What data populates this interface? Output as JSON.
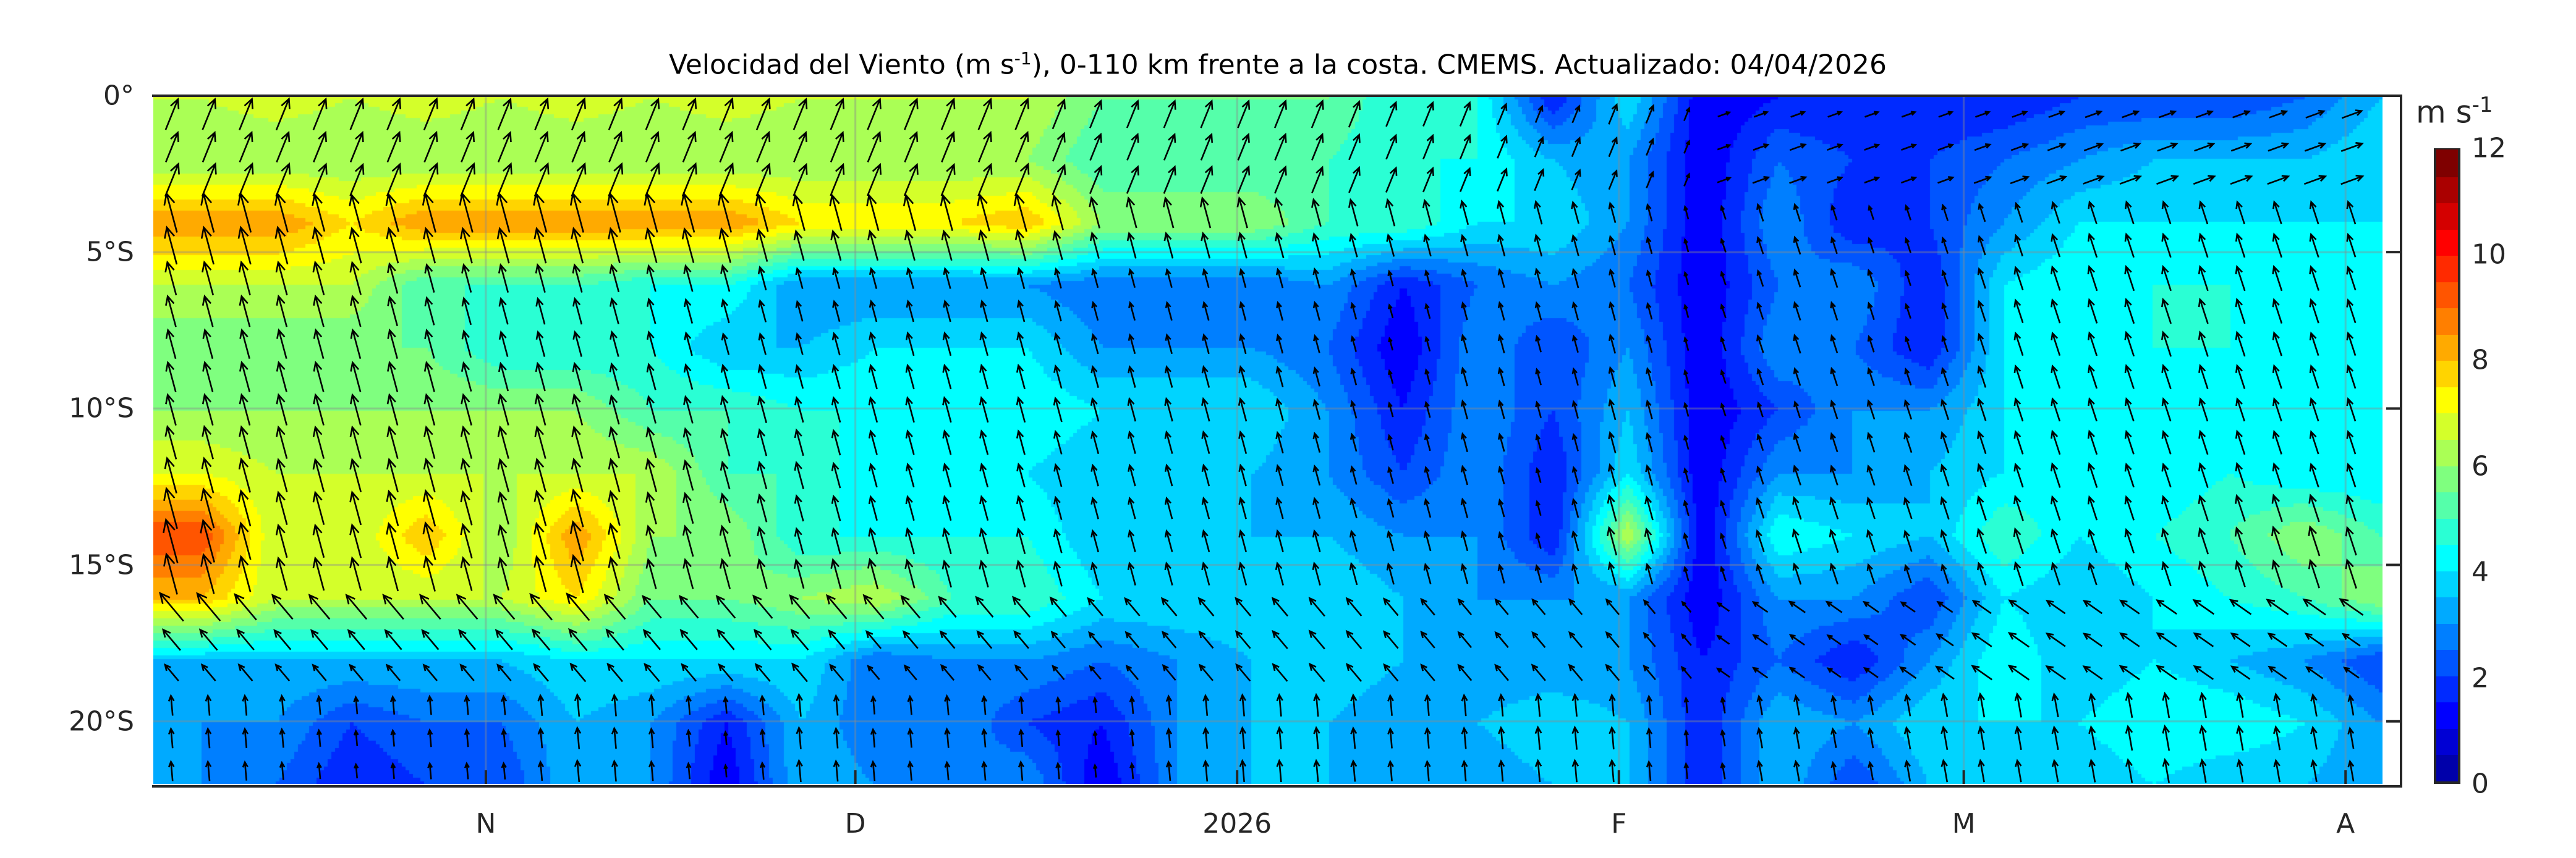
{
  "chart_data": {
    "type": "heatmap",
    "title_main": "Velocidad del Viento (m s",
    "title_sup": "-1",
    "title_rest": "), 0-110 km frente a la costa. CMEMS. Actualizado: 04/04/2026",
    "xlabel": "",
    "ylabel": "",
    "x_start": "2025-10-05",
    "x_end": "2026-04-04",
    "x_ticks": [
      {
        "label": "N",
        "day": 27
      },
      {
        "label": "D",
        "day": 57
      },
      {
        "label": "2026",
        "day": 88
      },
      {
        "label": "F",
        "day": 119
      },
      {
        "label": "M",
        "day": 147
      },
      {
        "label": "A",
        "day": 178
      }
    ],
    "x_total_days": 181,
    "ylim": [
      -22,
      0
    ],
    "y_ticks": [
      {
        "label": "0°",
        "value": 0
      },
      {
        "label": "5°S",
        "value": -5
      },
      {
        "label": "10°S",
        "value": -10
      },
      {
        "label": "15°S",
        "value": -15
      },
      {
        "label": "20°S",
        "value": -20
      }
    ],
    "grid": true,
    "colorbar": {
      "unit_main": "m s",
      "unit_sup": "-1",
      "range": [
        0,
        12
      ],
      "ticks": [
        "0",
        "2",
        "4",
        "6",
        "8",
        "10",
        "12"
      ],
      "colors": [
        "#0000aa",
        "#0000d4",
        "#0000ff",
        "#002aff",
        "#0055ff",
        "#007fff",
        "#00aaff",
        "#00d4ff",
        "#00ffff",
        "#2affd4",
        "#55ffaa",
        "#7fff7f",
        "#aaff55",
        "#d4ff2a",
        "#ffff00",
        "#ffd400",
        "#ffaa00",
        "#ff7f00",
        "#ff5500",
        "#ff2a00",
        "#ff0000",
        "#d40000",
        "#aa0000",
        "#7f0000"
      ]
    },
    "grid_lats": [
      0,
      -2,
      -4,
      -6,
      -8,
      -10,
      -12,
      -14,
      -16,
      -18,
      -20,
      -22
    ],
    "grid_days_step": 6.1,
    "grid_days_start": 3.7,
    "speed": [
      [
        6.5,
        6.8,
        6.5,
        6.8,
        6.5,
        6.8,
        6.5,
        6.8,
        6.5,
        6.5,
        6.5,
        6.5,
        5.5,
        5.5,
        5.5,
        5.5,
        4.5,
        4.5,
        1.5,
        4,
        1,
        1.5,
        1.5,
        1.5,
        1.5,
        2,
        2,
        2,
        2.5,
        3.5
      ],
      [
        6,
        6,
        6,
        6,
        6,
        6,
        6,
        6,
        6,
        6,
        6,
        6,
        5,
        5,
        5,
        5,
        4.5,
        4.5,
        3.5,
        3,
        1,
        2.5,
        2,
        2,
        2.5,
        3,
        3.5,
        3.5,
        3.5,
        4
      ],
      [
        8.5,
        8.5,
        7.5,
        8.5,
        8.5,
        8.5,
        8.5,
        8.5,
        7.5,
        7.5,
        7.5,
        8,
        6,
        6,
        6,
        5,
        5,
        4,
        4,
        3,
        1,
        3,
        1.5,
        2,
        3,
        4,
        4,
        4,
        4,
        4
      ],
      [
        6.5,
        6.5,
        6.5,
        5,
        5,
        5,
        4.5,
        4.5,
        3,
        3,
        3,
        3,
        2.5,
        2.5,
        2.5,
        3,
        1.5,
        2.5,
        3,
        2.5,
        1,
        2.5,
        3,
        1.5,
        4,
        4.5,
        4.5,
        4.5,
        4.5,
        4
      ],
      [
        5.5,
        5.5,
        5.5,
        5.5,
        4.5,
        4.5,
        4.5,
        3.5,
        3.5,
        4,
        4,
        4,
        3,
        3,
        3,
        2.5,
        1,
        3,
        2,
        3,
        1,
        3,
        2.5,
        1.5,
        4,
        4,
        4.5,
        4.5,
        4,
        4
      ],
      [
        6,
        6,
        6,
        6,
        6,
        6,
        5,
        5,
        4.5,
        4.5,
        4.5,
        4.5,
        4,
        4,
        4,
        3,
        1.5,
        3,
        2,
        3.5,
        1,
        2,
        3,
        3,
        4,
        4,
        4,
        4,
        4,
        4
      ],
      [
        7,
        6.5,
        6.5,
        6.5,
        6.5,
        6.5,
        6.5,
        5,
        5,
        4,
        4,
        4,
        3.5,
        3.5,
        3.5,
        3,
        2,
        3,
        1.5,
        4,
        1,
        3,
        3,
        3.5,
        4,
        4.5,
        4,
        4.5,
        4,
        4
      ],
      [
        9.5,
        6.5,
        6.5,
        8,
        6,
        8.5,
        6,
        6,
        4.5,
        4.5,
        4.5,
        4.5,
        3.5,
        3.5,
        3.5,
        3.5,
        3,
        3,
        1.5,
        6.5,
        1,
        4.5,
        4,
        3.5,
        5,
        4,
        4.5,
        5,
        6,
        5
      ],
      [
        8,
        6.5,
        6.5,
        6.5,
        6.5,
        7.5,
        5.5,
        5.5,
        6,
        6.5,
        5,
        5,
        4,
        4,
        4,
        4,
        3.5,
        3,
        3,
        3,
        1,
        3,
        3,
        2,
        4,
        3.5,
        4,
        4.5,
        5,
        6
      ],
      [
        3.5,
        3.5,
        3.5,
        3.5,
        3.5,
        4,
        4,
        4,
        4,
        2.5,
        3,
        3,
        2.5,
        3,
        3.5,
        4,
        3.5,
        3,
        3,
        3,
        1.5,
        2.5,
        1.5,
        3,
        4.5,
        3.5,
        4,
        3.5,
        3,
        2
      ],
      [
        3,
        3,
        2,
        2.5,
        2.5,
        3.5,
        3,
        1.5,
        3.5,
        2.5,
        3,
        2,
        1.5,
        3,
        3.5,
        3.5,
        3,
        3.5,
        4,
        3.5,
        1.5,
        3.5,
        3,
        4,
        4,
        4,
        4.5,
        4.5,
        4,
        3
      ],
      [
        3,
        2.5,
        1.5,
        2,
        2,
        3.5,
        3,
        1,
        3.5,
        3,
        2.5,
        3,
        1,
        3,
        3.5,
        3.5,
        3,
        3,
        3.5,
        3.5,
        1.5,
        3.5,
        2,
        3.5,
        3.5,
        3.5,
        4,
        3.5,
        3.5,
        3
      ]
    ],
    "arrows": {
      "days_step": 3,
      "direction_deg_to": [
        {
          "lat_min": -3.5,
          "lat_max": 0,
          "early": 22,
          "late": 70,
          "late_from_day": 125
        },
        {
          "lat_min": -16,
          "lat_max": -3.5,
          "early": -15,
          "late": -18,
          "late_from_day": 125
        },
        {
          "lat_min": -18.5,
          "lat_max": -16,
          "early": -40,
          "late": -55,
          "late_from_day": 125
        },
        {
          "lat_min": -22,
          "lat_max": -18.5,
          "early": -5,
          "late": -10,
          "late_from_day": 125
        }
      ]
    }
  }
}
